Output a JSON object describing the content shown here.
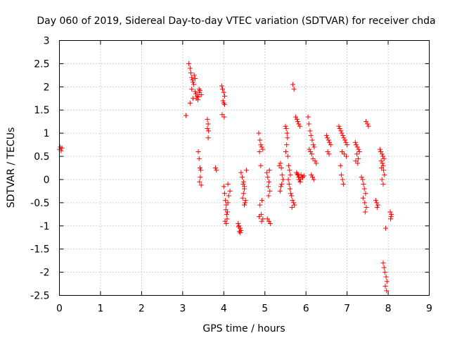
{
  "chart_data": {
    "type": "scatter",
    "title": "Day 060 of 2019, Sidereal Day-to-day VTEC variation (SDTVAR) for receiver chda",
    "xlabel": "GPS time / hours",
    "ylabel": "SDTVAR / TECUs",
    "xlim": [
      0,
      9
    ],
    "ylim": [
      -2.5,
      3
    ],
    "xticks": [
      "0",
      "1",
      "2",
      "3",
      "4",
      "5",
      "6",
      "7",
      "8",
      "9"
    ],
    "yticks": [
      "-2.5",
      "-2",
      "-1.5",
      "-1",
      "-0.5",
      "0",
      "0.5",
      "1",
      "1.5",
      "2",
      "2.5",
      "3"
    ],
    "grid": true,
    "marker": "plus",
    "color": "#ff0000",
    "series": [
      {
        "name": "SDTVAR",
        "x": [
          0.0,
          0.02,
          0.04,
          0.06,
          3.08,
          3.15,
          3.18,
          3.2,
          3.22,
          3.24,
          3.25,
          3.27,
          3.28,
          3.3,
          3.22,
          3.18,
          3.25,
          3.3,
          3.32,
          3.35,
          3.38,
          3.4,
          3.42,
          3.45,
          3.33,
          3.37,
          3.4,
          3.38,
          3.4,
          3.42,
          3.44,
          3.43,
          3.41,
          3.45,
          3.6,
          3.62,
          3.6,
          3.63,
          3.62,
          3.8,
          3.82,
          3.95,
          3.97,
          4.0,
          4.02,
          3.98,
          4.0,
          4.02,
          3.96,
          4.01,
          4.0,
          4.02,
          4.04,
          4.06,
          4.05,
          4.07,
          4.08,
          4.03,
          4.06,
          4.09,
          4.1,
          4.12,
          4.15,
          4.1,
          4.35,
          4.37,
          4.4,
          4.42,
          4.38,
          4.4,
          4.36,
          4.42,
          4.45,
          4.47,
          4.5,
          4.48,
          4.46,
          4.52,
          4.5,
          4.55,
          4.48,
          4.5,
          4.53,
          4.85,
          4.88,
          4.9,
          4.92,
          4.95,
          4.87,
          4.9,
          4.93,
          4.88,
          4.91,
          4.86,
          4.95,
          4.92,
          5.05,
          5.07,
          5.1,
          5.08,
          5.12,
          5.09,
          5.11,
          5.06,
          5.1,
          5.13,
          5.35,
          5.38,
          5.4,
          5.42,
          5.44,
          5.41,
          5.39,
          5.37,
          5.5,
          5.52,
          5.54,
          5.55,
          5.53,
          5.51,
          5.56,
          5.58,
          5.6,
          5.62,
          5.57,
          5.59,
          5.61,
          5.63,
          5.65,
          5.67,
          5.7,
          5.72,
          5.66,
          5.68,
          5.71,
          5.75,
          5.78,
          5.8,
          5.82,
          5.85,
          5.88,
          5.9,
          5.83,
          5.86,
          5.77,
          5.81,
          5.84,
          5.87,
          5.92,
          5.95,
          5.79,
          5.8,
          5.82,
          5.84,
          5.86,
          6.05,
          6.07,
          6.1,
          6.12,
          6.15,
          6.18,
          6.2,
          6.08,
          6.11,
          6.14,
          6.17,
          6.22,
          6.25,
          6.13,
          6.16,
          6.19,
          6.5,
          6.52,
          6.55,
          6.57,
          6.6,
          6.53,
          6.56,
          6.8,
          6.82,
          6.85,
          6.87,
          6.9,
          6.92,
          6.95,
          6.97,
          7.0,
          6.88,
          6.93,
          6.98,
          6.84,
          6.86,
          6.89,
          6.91,
          7.2,
          7.22,
          7.25,
          7.28,
          7.3,
          7.24,
          7.27,
          7.21,
          7.26,
          7.35,
          7.38,
          7.4,
          7.42,
          7.45,
          7.39,
          7.43,
          7.47,
          7.44,
          7.46,
          7.5,
          7.52,
          7.7,
          7.72,
          7.75,
          7.73,
          7.8,
          7.82,
          7.85,
          7.87,
          7.9,
          7.83,
          7.86,
          7.88,
          7.84,
          7.89,
          7.91,
          7.85,
          7.88,
          7.88,
          7.9,
          7.92,
          7.95,
          7.97,
          7.93,
          7.96,
          7.94,
          8.05,
          8.08,
          8.07,
          8.06
        ],
        "y": [
          0.65,
          0.7,
          0.62,
          0.68,
          1.38,
          2.5,
          2.4,
          2.3,
          2.2,
          2.15,
          2.1,
          2.05,
          2.25,
          2.18,
          1.95,
          1.65,
          1.75,
          1.9,
          1.85,
          1.8,
          1.78,
          1.88,
          1.92,
          1.83,
          1.75,
          1.72,
          1.95,
          0.6,
          0.45,
          0.25,
          0.2,
          0.05,
          -0.05,
          -0.12,
          1.3,
          1.2,
          1.1,
          1.05,
          0.9,
          0.25,
          0.2,
          2.02,
          1.95,
          1.88,
          1.8,
          1.7,
          1.65,
          1.62,
          1.4,
          1.35,
          -0.15,
          -0.3,
          -0.45,
          -0.55,
          -0.65,
          -0.75,
          -0.85,
          -0.9,
          -0.95,
          -0.7,
          -0.5,
          -0.35,
          -0.25,
          -0.1,
          -0.95,
          -1.0,
          -1.05,
          -1.1,
          -1.12,
          -1.15,
          -1.02,
          0.15,
          0.05,
          -0.1,
          -0.2,
          -0.3,
          -0.4,
          -0.5,
          -0.55,
          0.2,
          -0.05,
          -0.15,
          -0.45,
          1.0,
          0.85,
          0.75,
          0.7,
          0.65,
          0.6,
          0.3,
          -0.45,
          -0.55,
          -0.75,
          -0.8,
          -0.85,
          -0.9,
          0.15,
          0.05,
          -0.05,
          -0.15,
          -0.25,
          -0.35,
          0.2,
          -0.85,
          -0.9,
          -0.95,
          0.3,
          0.35,
          0.25,
          0.1,
          0.0,
          -0.1,
          -0.15,
          -0.25,
          1.15,
          1.1,
          1.0,
          0.9,
          0.75,
          0.6,
          0.5,
          0.3,
          0.2,
          0.1,
          0.0,
          -0.1,
          -0.2,
          -0.3,
          -0.35,
          -0.45,
          -0.5,
          -0.55,
          -0.6,
          2.05,
          1.95,
          1.35,
          1.3,
          1.25,
          1.2,
          1.15,
          0.1,
          0.05,
          0.0,
          -0.05,
          0.15,
          0.1,
          0.05,
          0.0,
          0.05,
          0.08,
          0.12,
          0.1,
          0.05,
          0.0,
          -0.05,
          1.35,
          1.2,
          1.05,
          0.95,
          0.85,
          0.75,
          0.7,
          0.65,
          0.6,
          0.55,
          0.45,
          0.4,
          0.35,
          0.1,
          0.05,
          0.0,
          0.95,
          0.9,
          0.85,
          0.8,
          0.75,
          0.6,
          0.55,
          1.15,
          1.1,
          1.05,
          1.0,
          0.95,
          0.9,
          0.85,
          0.8,
          0.75,
          0.6,
          0.55,
          0.5,
          0.3,
          0.1,
          0.0,
          -0.1,
          0.8,
          0.75,
          0.7,
          0.65,
          0.6,
          0.55,
          0.45,
          0.4,
          0.35,
          0.05,
          0.0,
          -0.1,
          -0.2,
          -0.3,
          -0.4,
          -0.5,
          -0.6,
          -0.7,
          1.25,
          1.2,
          1.15,
          -0.45,
          -0.5,
          -0.55,
          -0.6,
          0.65,
          0.6,
          0.55,
          0.5,
          0.45,
          0.4,
          0.35,
          0.3,
          0.25,
          0.2,
          0.1,
          0.0,
          -0.1,
          -1.8,
          -1.9,
          -2.0,
          -2.1,
          -2.2,
          -2.3,
          -2.4,
          -1.05,
          -0.7,
          -0.75,
          -0.8,
          -0.85
        ]
      }
    ]
  }
}
